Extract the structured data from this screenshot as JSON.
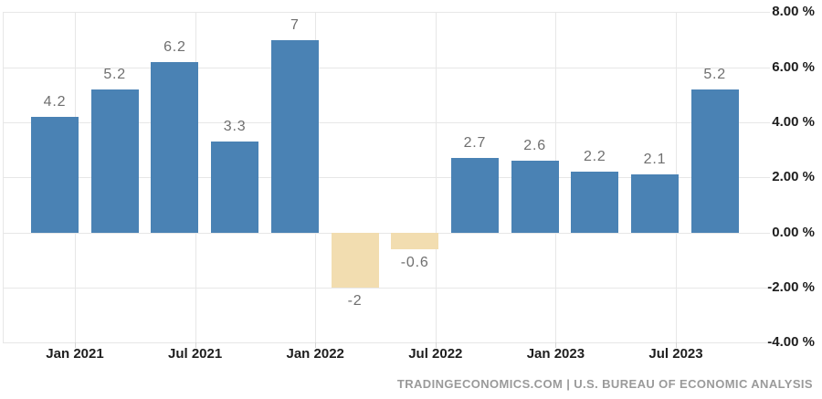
{
  "chart_data": {
    "type": "bar",
    "values": [
      4.2,
      5.2,
      6.2,
      3.3,
      7,
      -2,
      -0.6,
      2.7,
      2.6,
      2.2,
      2.1,
      5.2
    ],
    "bar_labels": [
      "4.2",
      "5.2",
      "6.2",
      "3.3",
      "7",
      "-2",
      "-0.6",
      "2.7",
      "2.6",
      "2.2",
      "2.1",
      "5.2"
    ],
    "x_tick_labels": [
      "Jan 2021",
      "Jul 2021",
      "Jan 2022",
      "Jul 2022",
      "Jan 2023",
      "Jul 2023"
    ],
    "y_ticks": [
      8,
      6,
      4,
      2,
      0,
      -2,
      -4
    ],
    "y_tick_labels": [
      "8.00 %",
      "6.00 %",
      "4.00 %",
      "2.00 %",
      "0.00 %",
      "-2.00 %",
      "-4.00 %"
    ],
    "ylim": [
      -4,
      8
    ],
    "grid": true,
    "legend_visible": false,
    "colors": {
      "positive_bar": "#4a82b4",
      "negative_bar": "#f2ddb0",
      "gridline": "#e7e7e7",
      "bar_label": "#6f6f6f",
      "axis_label": "#1e1e1e",
      "attribution": "#9a9a9a"
    }
  },
  "footer": {
    "attribution": "TRADINGECONOMICS.COM | U.S. BUREAU OF ECONOMIC ANALYSIS"
  }
}
